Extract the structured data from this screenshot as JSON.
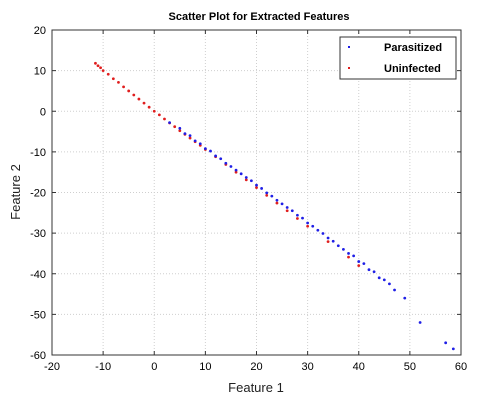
{
  "chart_data": {
    "type": "scatter",
    "title": "Scatter Plot for Extracted Features",
    "xlabel": "Feature 1",
    "ylabel": "Feature 2",
    "xlim": [
      -20,
      60
    ],
    "ylim": [
      -60,
      20
    ],
    "xticks": [
      -20,
      -10,
      0,
      10,
      20,
      30,
      40,
      50,
      60
    ],
    "yticks": [
      -60,
      -50,
      -40,
      -30,
      -20,
      -10,
      0,
      10,
      20
    ],
    "xtick_labels": [
      "-20",
      "-10",
      "0",
      "10",
      "20",
      "30",
      "40",
      "50",
      "60"
    ],
    "ytick_labels": [
      "-60",
      "-50",
      "-40",
      "-30",
      "-20",
      "-10",
      "0",
      "10",
      "20"
    ],
    "grid": true,
    "legend_position": "top-right",
    "series": [
      {
        "name": "Parasitized",
        "color": "#1f1fe6",
        "points": [
          [
            3,
            -2.8
          ],
          [
            5,
            -4.2
          ],
          [
            6,
            -5.5
          ],
          [
            7,
            -6.0
          ],
          [
            8,
            -7.3
          ],
          [
            9,
            -8.0
          ],
          [
            10,
            -9.2
          ],
          [
            11,
            -9.8
          ],
          [
            12,
            -11.0
          ],
          [
            13,
            -11.7
          ],
          [
            14,
            -12.8
          ],
          [
            15,
            -13.6
          ],
          [
            16,
            -14.5
          ],
          [
            17,
            -15.4
          ],
          [
            18,
            -16.3
          ],
          [
            19,
            -17.1
          ],
          [
            20,
            -18.2
          ],
          [
            21,
            -19.0
          ],
          [
            22,
            -20.1
          ],
          [
            23,
            -20.9
          ],
          [
            24,
            -21.9
          ],
          [
            25,
            -22.8
          ],
          [
            26,
            -23.7
          ],
          [
            27,
            -24.5
          ],
          [
            28,
            -25.6
          ],
          [
            29,
            -26.3
          ],
          [
            30,
            -27.5
          ],
          [
            31,
            -28.3
          ],
          [
            32,
            -29.3
          ],
          [
            33,
            -30.1
          ],
          [
            34,
            -31.2
          ],
          [
            35,
            -32.0
          ],
          [
            36,
            -33.1
          ],
          [
            37,
            -34.0
          ],
          [
            38,
            -35.0
          ],
          [
            39,
            -35.6
          ],
          [
            40,
            -37.0
          ],
          [
            41,
            -37.5
          ],
          [
            42,
            -39.0
          ],
          [
            43,
            -39.5
          ],
          [
            44,
            -41.0
          ],
          [
            45,
            -41.5
          ],
          [
            46,
            -42.5
          ],
          [
            47,
            -44.0
          ],
          [
            49,
            -46.0
          ],
          [
            52,
            -52.0
          ],
          [
            57,
            -57.0
          ],
          [
            58.5,
            -58.5
          ]
        ]
      },
      {
        "name": "Uninfected",
        "color": "#e01e1e",
        "points": [
          [
            -11.5,
            11.8
          ],
          [
            -11,
            11.2
          ],
          [
            -10.5,
            10.7
          ],
          [
            -10,
            10.0
          ],
          [
            -9,
            9.1
          ],
          [
            -8,
            8.0
          ],
          [
            -7,
            7.1
          ],
          [
            -6,
            6.0
          ],
          [
            -5,
            5.0
          ],
          [
            -4,
            4.0
          ],
          [
            -3,
            3.0
          ],
          [
            -2,
            2.0
          ],
          [
            -1,
            1.0
          ],
          [
            0,
            0.0
          ],
          [
            1,
            -0.9
          ],
          [
            2,
            -1.9
          ],
          [
            3,
            -2.9
          ],
          [
            4,
            -3.8
          ],
          [
            5,
            -4.8
          ],
          [
            6,
            -5.7
          ],
          [
            7,
            -6.6
          ],
          [
            8,
            -7.5
          ],
          [
            9,
            -8.4
          ],
          [
            10,
            -9.4
          ],
          [
            12,
            -11.2
          ],
          [
            14,
            -13.1
          ],
          [
            16,
            -15.0
          ],
          [
            18,
            -16.9
          ],
          [
            20,
            -18.8
          ],
          [
            22,
            -20.7
          ],
          [
            24,
            -22.6
          ],
          [
            26,
            -24.5
          ],
          [
            28,
            -26.4
          ],
          [
            30,
            -28.3
          ],
          [
            34,
            -32.1
          ],
          [
            38,
            -35.9
          ],
          [
            40,
            -38.0
          ]
        ]
      }
    ]
  }
}
